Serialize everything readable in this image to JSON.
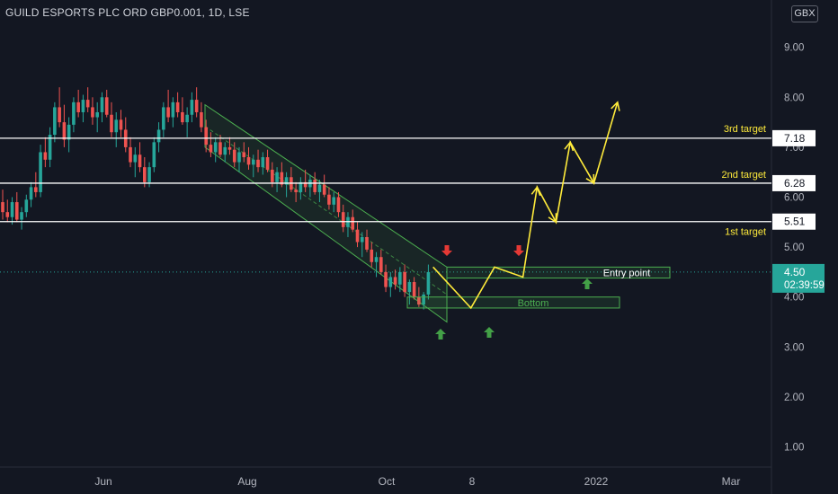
{
  "title": "GUILD ESPORTS PLC ORD GBP0.001, 1D, LSE",
  "currency": "GBX",
  "colors": {
    "background": "#131722",
    "up": "#26a69a",
    "down": "#ef5350",
    "level_line": "#ffffff",
    "projection": "#ffeb3b",
    "channel": "#4caf50",
    "annotation_text": "#ffeb3b",
    "price_marker": "#26a69a",
    "arrow_up": "#43a047",
    "arrow_down": "#e53935"
  },
  "chart_data": {
    "type": "candlestick",
    "y_axis": {
      "ticks": [
        "1.00",
        "2.00",
        "3.00",
        "4.00",
        "5.00",
        "6.00",
        "7.00",
        "8.00",
        "9.00"
      ],
      "range": [
        0.5,
        9.6
      ]
    },
    "x_axis": {
      "ticks": [
        "Jun",
        "Aug",
        "Oct",
        "8",
        "2022",
        "Mar"
      ]
    },
    "ohlc": [
      [
        5.9,
        6.15,
        5.55,
        5.7
      ],
      [
        5.7,
        5.95,
        5.5,
        5.6
      ],
      [
        5.6,
        6.0,
        5.45,
        5.9
      ],
      [
        5.9,
        6.1,
        5.5,
        5.55
      ],
      [
        5.55,
        5.8,
        5.35,
        5.7
      ],
      [
        5.7,
        6.05,
        5.6,
        5.95
      ],
      [
        5.95,
        6.3,
        5.8,
        6.2
      ],
      [
        6.2,
        6.5,
        6.0,
        6.1
      ],
      [
        6.1,
        7.05,
        6.0,
        6.9
      ],
      [
        6.9,
        7.2,
        6.6,
        6.75
      ],
      [
        6.75,
        7.4,
        6.6,
        7.25
      ],
      [
        7.25,
        7.9,
        7.1,
        7.8
      ],
      [
        7.8,
        8.2,
        7.4,
        7.5
      ],
      [
        7.5,
        7.85,
        7.0,
        7.15
      ],
      [
        7.15,
        7.6,
        6.9,
        7.45
      ],
      [
        7.45,
        8.0,
        7.3,
        7.9
      ],
      [
        7.9,
        8.15,
        7.6,
        7.7
      ],
      [
        7.7,
        8.05,
        7.5,
        7.95
      ],
      [
        7.95,
        8.2,
        7.7,
        7.8
      ],
      [
        7.8,
        8.0,
        7.45,
        7.6
      ],
      [
        7.6,
        7.9,
        7.3,
        7.7
      ],
      [
        7.7,
        8.1,
        7.5,
        8.0
      ],
      [
        8.0,
        8.15,
        7.6,
        7.65
      ],
      [
        7.65,
        7.9,
        7.2,
        7.3
      ],
      [
        7.3,
        7.7,
        7.0,
        7.55
      ],
      [
        7.55,
        7.75,
        7.2,
        7.35
      ],
      [
        7.35,
        7.6,
        6.9,
        7.0
      ],
      [
        7.0,
        7.2,
        6.6,
        6.7
      ],
      [
        6.7,
        7.0,
        6.4,
        6.85
      ],
      [
        6.85,
        7.1,
        6.5,
        6.6
      ],
      [
        6.6,
        6.8,
        6.2,
        6.3
      ],
      [
        6.3,
        6.7,
        6.2,
        6.6
      ],
      [
        6.6,
        7.2,
        6.5,
        7.1
      ],
      [
        7.1,
        7.5,
        6.9,
        7.35
      ],
      [
        7.35,
        7.9,
        7.2,
        7.8
      ],
      [
        7.8,
        8.15,
        7.5,
        7.6
      ],
      [
        7.6,
        8.0,
        7.4,
        7.9
      ],
      [
        7.9,
        8.1,
        7.6,
        7.7
      ],
      [
        7.7,
        8.0,
        7.45,
        7.5
      ],
      [
        7.5,
        7.8,
        7.2,
        7.65
      ],
      [
        7.65,
        8.1,
        7.5,
        7.95
      ],
      [
        7.95,
        8.2,
        7.6,
        7.7
      ],
      [
        7.7,
        7.9,
        7.3,
        7.4
      ],
      [
        7.4,
        7.55,
        6.9,
        7.05
      ],
      [
        7.05,
        7.3,
        6.8,
        6.9
      ],
      [
        6.9,
        7.2,
        6.7,
        7.1
      ],
      [
        7.1,
        7.25,
        6.8,
        6.85
      ],
      [
        6.85,
        7.1,
        6.7,
        7.0
      ],
      [
        7.0,
        7.2,
        6.85,
        6.95
      ],
      [
        6.95,
        7.1,
        6.6,
        6.7
      ],
      [
        6.7,
        7.0,
        6.5,
        6.9
      ],
      [
        6.9,
        7.1,
        6.7,
        6.8
      ],
      [
        6.8,
        7.0,
        6.55,
        6.65
      ],
      [
        6.65,
        6.85,
        6.4,
        6.75
      ],
      [
        6.75,
        6.95,
        6.5,
        6.6
      ],
      [
        6.6,
        6.9,
        6.45,
        6.8
      ],
      [
        6.8,
        6.95,
        6.5,
        6.55
      ],
      [
        6.55,
        6.7,
        6.2,
        6.3
      ],
      [
        6.3,
        6.6,
        6.1,
        6.5
      ],
      [
        6.5,
        6.7,
        6.2,
        6.25
      ],
      [
        6.25,
        6.5,
        6.0,
        6.4
      ],
      [
        6.4,
        6.6,
        6.1,
        6.15
      ],
      [
        6.15,
        6.3,
        5.9,
        6.1
      ],
      [
        6.1,
        6.4,
        5.95,
        6.3
      ],
      [
        6.3,
        6.55,
        6.1,
        6.2
      ],
      [
        6.2,
        6.45,
        6.0,
        6.35
      ],
      [
        6.35,
        6.5,
        6.05,
        6.1
      ],
      [
        6.1,
        6.35,
        5.9,
        6.25
      ],
      [
        6.25,
        6.45,
        6.0,
        6.05
      ],
      [
        6.05,
        6.2,
        5.75,
        5.85
      ],
      [
        5.85,
        6.1,
        5.7,
        6.0
      ],
      [
        6.0,
        6.1,
        5.6,
        5.7
      ],
      [
        5.7,
        5.85,
        5.3,
        5.4
      ],
      [
        5.4,
        5.7,
        5.2,
        5.6
      ],
      [
        5.6,
        5.75,
        5.3,
        5.35
      ],
      [
        5.35,
        5.5,
        5.0,
        5.1
      ],
      [
        5.1,
        5.3,
        4.8,
        5.2
      ],
      [
        5.2,
        5.35,
        4.9,
        4.95
      ],
      [
        4.95,
        5.1,
        4.6,
        4.7
      ],
      [
        4.7,
        4.9,
        4.4,
        4.8
      ],
      [
        4.8,
        4.95,
        4.45,
        4.5
      ],
      [
        4.5,
        4.65,
        4.1,
        4.2
      ],
      [
        4.2,
        4.5,
        4.0,
        4.4
      ],
      [
        4.4,
        4.55,
        4.15,
        4.25
      ],
      [
        4.25,
        4.6,
        4.1,
        4.5
      ],
      [
        4.5,
        4.65,
        4.0,
        4.1
      ],
      [
        4.1,
        4.35,
        3.85,
        4.3
      ],
      [
        4.3,
        4.4,
        3.95,
        4.0
      ],
      [
        4.0,
        4.2,
        3.8,
        3.85
      ],
      [
        3.85,
        4.1,
        3.75,
        4.05
      ],
      [
        4.05,
        4.65,
        3.95,
        4.5
      ]
    ],
    "current_price": "4.50",
    "countdown": "02:39:59",
    "horizontal_levels": [
      {
        "value": 7.18,
        "label": "7.18",
        "annotation": "3rd target"
      },
      {
        "value": 6.28,
        "label": "6.28",
        "annotation": "2nd target"
      },
      {
        "value": 5.51,
        "label": "5.51",
        "annotation": "1st target"
      }
    ],
    "zones": [
      {
        "label": "Entry point",
        "low": 4.38,
        "high": 4.6
      },
      {
        "label": "Bottom",
        "low": 3.78,
        "high": 4.0
      }
    ],
    "projection_path": [
      [
        91,
        4.6
      ],
      [
        99,
        3.78
      ],
      [
        104,
        4.6
      ],
      [
        110,
        4.4
      ],
      [
        113,
        6.2
      ],
      [
        117,
        5.5
      ],
      [
        120,
        7.1
      ],
      [
        125,
        6.28
      ],
      [
        130,
        7.9
      ]
    ]
  }
}
